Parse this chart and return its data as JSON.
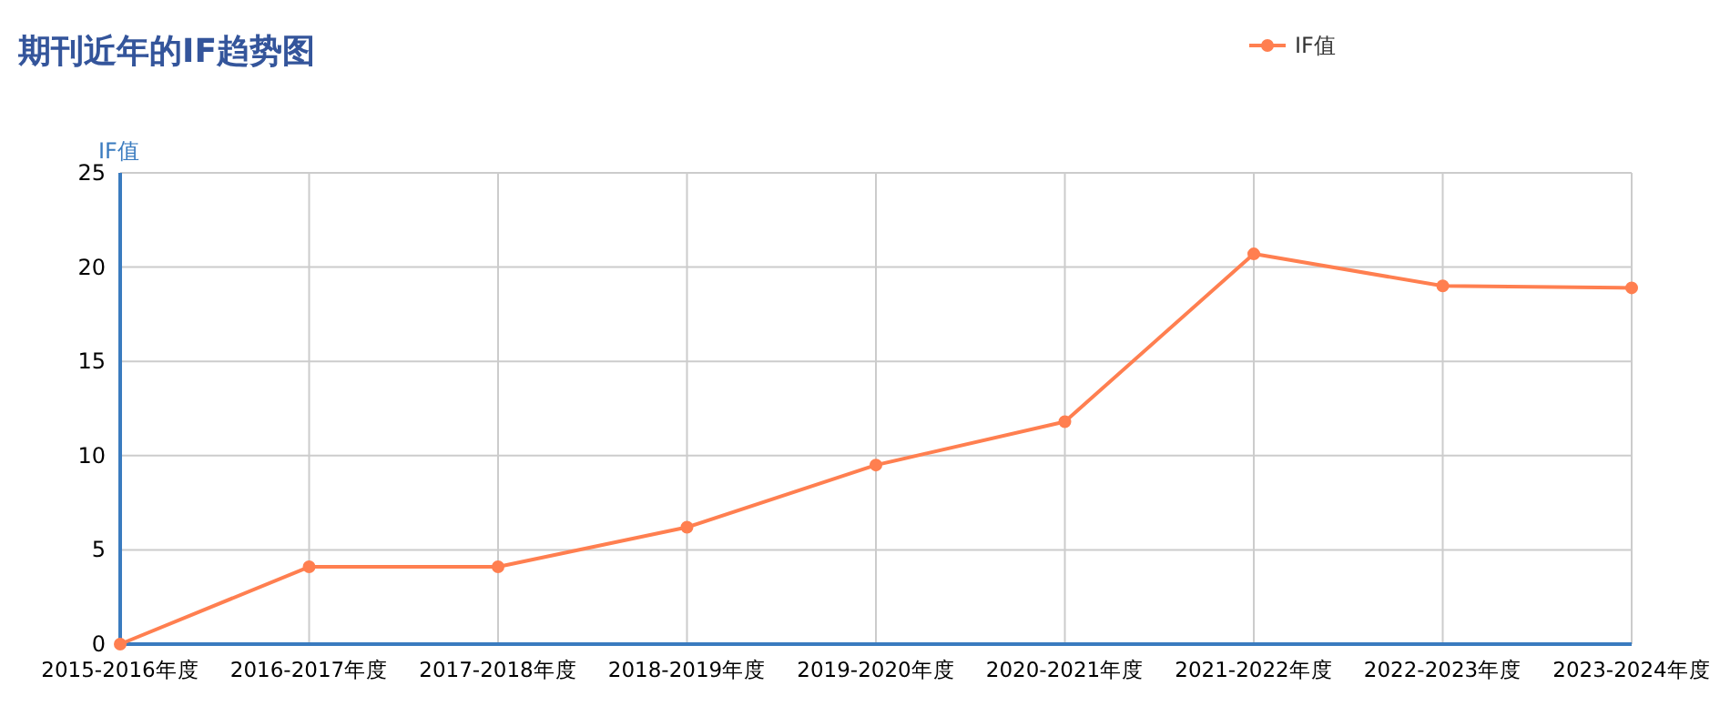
{
  "chart_data": {
    "type": "line",
    "title": "期刊近年的IF趋势图",
    "ylabel": "IF值",
    "categories": [
      "2015-2016年度",
      "2016-2017年度",
      "2017-2018年度",
      "2018-2019年度",
      "2019-2020年度",
      "2020-2021年度",
      "2021-2022年度",
      "2022-2023年度",
      "2023-2024年度"
    ],
    "series": [
      {
        "name": "IF值",
        "color": "#ff7f50",
        "values": [
          0,
          4.1,
          4.1,
          6.2,
          9.5,
          11.8,
          20.7,
          19.0,
          18.9
        ]
      }
    ],
    "ylim": [
      0,
      25
    ],
    "yticks": [
      0,
      5,
      10,
      15,
      20,
      25
    ],
    "grid": true,
    "legend": "top right",
    "marker": "circle"
  }
}
